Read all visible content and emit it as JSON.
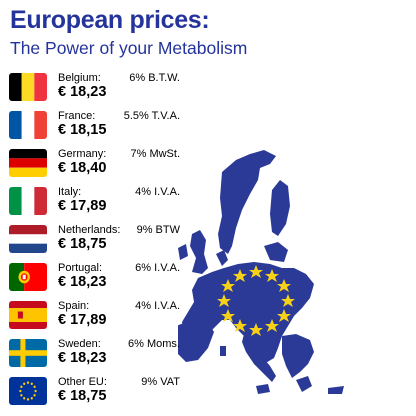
{
  "header": {
    "title": "European prices:",
    "subtitle": "The Power of your Metabolism"
  },
  "rows": [
    {
      "country": "Belgium:",
      "tax": "6% B.T.W.",
      "price": "€ 18,23",
      "flag": "belgium-flag"
    },
    {
      "country": "France:",
      "tax": "5.5% T.V.A.",
      "price": "€ 18,15",
      "flag": "france-flag"
    },
    {
      "country": "Germany:",
      "tax": "7% MwSt.",
      "price": "€ 18,40",
      "flag": "germany-flag"
    },
    {
      "country": "Italy:",
      "tax": "4% I.V.A.",
      "price": "€ 17,89",
      "flag": "italy-flag"
    },
    {
      "country": "Netherlands:",
      "tax": "9% BTW",
      "price": "€ 18,75",
      "flag": "netherlands-flag"
    },
    {
      "country": "Portugal:",
      "tax": "6% I.V.A.",
      "price": "€ 18,23",
      "flag": "portugal-flag"
    },
    {
      "country": "Spain:",
      "tax": "4% I.V.A.",
      "price": "€ 17,89",
      "flag": "spain-flag"
    },
    {
      "country": "Sweden:",
      "tax": "6% Moms.",
      "price": "€ 18,23",
      "flag": "sweden-flag"
    },
    {
      "country": "Other EU:",
      "tax": "9% VAT",
      "price": "€ 18,75",
      "flag": "eu-flag"
    }
  ],
  "colors": {
    "title": "#24349b",
    "map_blue": "#2b3a97",
    "star_yellow": "#f7d117"
  },
  "map": {
    "icon": "eu-map-icon"
  }
}
